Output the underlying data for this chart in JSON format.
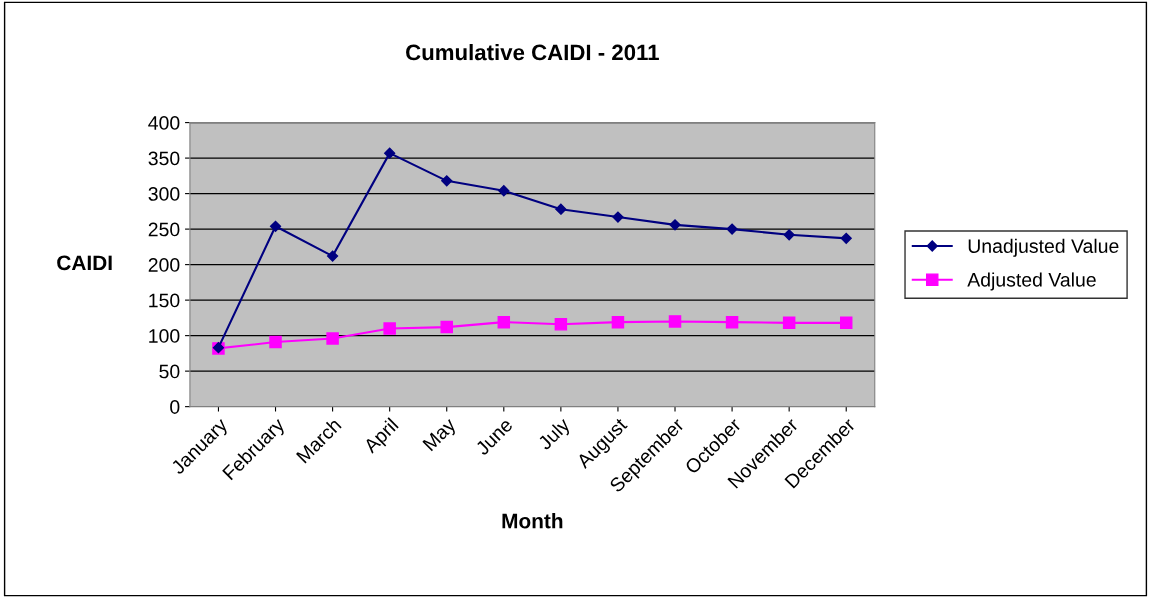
{
  "chart_data": {
    "type": "line",
    "title": "Cumulative CAIDI - 2011",
    "xlabel": "Month",
    "ylabel": "CAIDI",
    "categories": [
      "January",
      "February",
      "March",
      "April",
      "May",
      "June",
      "July",
      "August",
      "September",
      "October",
      "November",
      "December"
    ],
    "series": [
      {
        "name": "Unadjusted Value",
        "color": "#000080",
        "marker": "diamond",
        "values": [
          83,
          254,
          212,
          357,
          318,
          304,
          278,
          267,
          256,
          250,
          242,
          237
        ]
      },
      {
        "name": "Adjusted Value",
        "color": "#ff00ff",
        "marker": "square",
        "values": [
          82,
          91,
          96,
          110,
          112,
          119,
          116,
          119,
          120,
          119,
          118,
          118
        ]
      }
    ],
    "ylim": [
      0,
      400
    ],
    "yticks": [
      0,
      50,
      100,
      150,
      200,
      250,
      300,
      350,
      400
    ],
    "grid": "y",
    "legend": "right"
  }
}
